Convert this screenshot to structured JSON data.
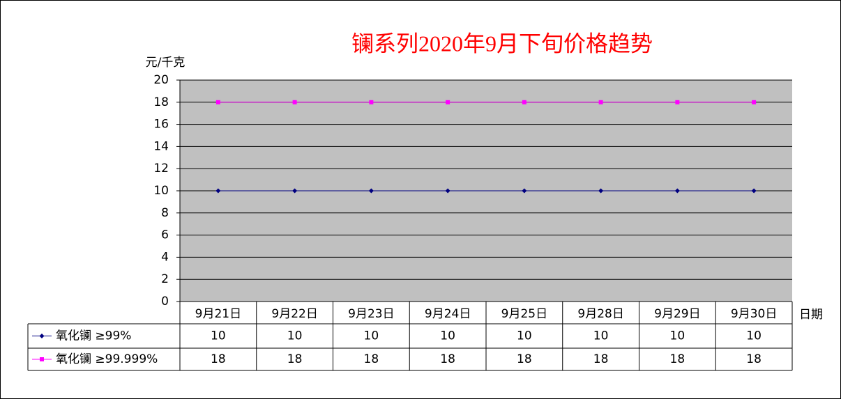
{
  "chart_data": {
    "type": "line",
    "title": "镧系列2020年9月下旬价格趋势",
    "y_label": "元/千克",
    "x_label": "日期",
    "categories": [
      "9月21日",
      "9月22日",
      "9月23日",
      "9月24日",
      "9月25日",
      "9月28日",
      "9月29日",
      "9月30日"
    ],
    "series": [
      {
        "name": "氧化镧 ≥99%",
        "color": "#000080",
        "marker": "diamond",
        "values": [
          10,
          10,
          10,
          10,
          10,
          10,
          10,
          10
        ]
      },
      {
        "name": "氧化镧 ≥99.999%",
        "color": "#ff00ff",
        "marker": "square",
        "values": [
          18,
          18,
          18,
          18,
          18,
          18,
          18,
          18
        ]
      }
    ],
    "ylim": [
      0,
      20
    ],
    "yticks": [
      0,
      2,
      4,
      6,
      8,
      10,
      12,
      14,
      16,
      18,
      20
    ],
    "grid": true,
    "data_table": true
  }
}
